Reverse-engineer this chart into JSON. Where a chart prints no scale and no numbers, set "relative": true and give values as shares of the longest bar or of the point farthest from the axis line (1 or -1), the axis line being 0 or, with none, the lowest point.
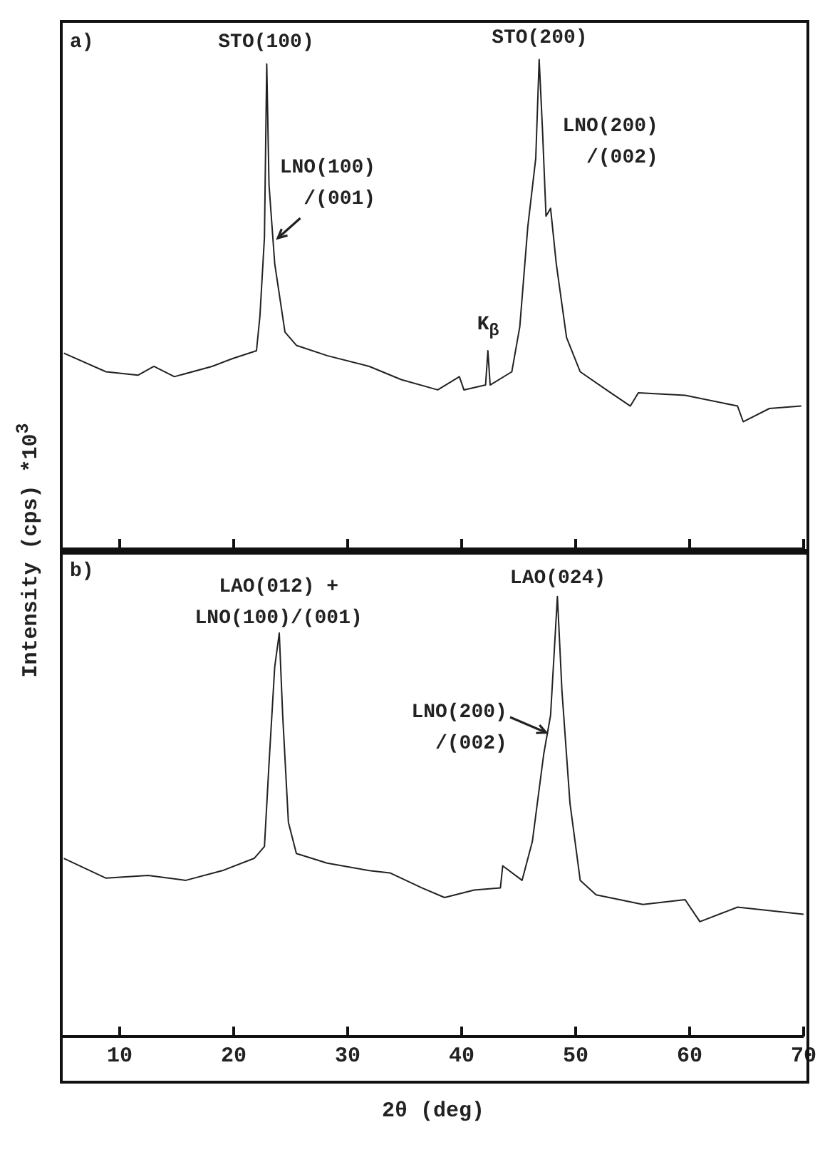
{
  "chart_data": [
    {
      "type": "line",
      "relative": true,
      "ylabel": "Intensity (cps) *10$^{3}$",
      "xlim": [
        5,
        70
      ],
      "xticks": [
        {
          "value": 10,
          "label": null
        },
        {
          "value": 20,
          "label": null
        },
        {
          "value": 30,
          "label": null
        },
        {
          "value": 40,
          "label": null
        },
        {
          "value": 50,
          "label": null
        },
        {
          "value": 60,
          "label": null
        },
        {
          "value": 70,
          "label": null
        }
      ],
      "tick_labels": false,
      "marker": "none",
      "series": [
        {
          "color": "#222222",
          "x": [
            5.1,
            8.8,
            11.6,
            13.0,
            14.8,
            18.1,
            19.9,
            22.0,
            22.3,
            22.7,
            22.9,
            23.1,
            23.6,
            24.5,
            25.5,
            28.2,
            31.9,
            34.7,
            37.9,
            39.8,
            40.2,
            42.1,
            42.3,
            42.5,
            44.4,
            45.1,
            45.8,
            46.5,
            46.8,
            47.1,
            47.4,
            47.8,
            48.3,
            49.2,
            50.4,
            52.7,
            54.8,
            55.5,
            59.6,
            64.2,
            64.7,
            67.0,
            69.8
          ],
          "values": [
            0.4,
            0.362,
            0.355,
            0.373,
            0.352,
            0.373,
            0.389,
            0.405,
            0.475,
            0.637,
            0.991,
            0.744,
            0.583,
            0.443,
            0.416,
            0.395,
            0.373,
            0.346,
            0.325,
            0.352,
            0.325,
            0.335,
            0.405,
            0.335,
            0.362,
            0.454,
            0.658,
            0.798,
            1.0,
            0.852,
            0.68,
            0.696,
            0.583,
            0.432,
            0.362,
            0.325,
            0.292,
            0.319,
            0.314,
            0.292,
            0.26,
            0.287,
            0.292
          ]
        }
      ],
      "annotations": [
        "a)",
        {
          "text": "STO(100)",
          "x": 22.9,
          "y": 0.991
        },
        {
          "text": "STO(200)",
          "x": 46.8,
          "y": 1.0
        },
        {
          "text": "LNO(100)\n/(001)",
          "x": 23.6,
          "y": 0.63
        },
        {
          "text": "LNO(200)\n/(002)",
          "x": 47.8,
          "y": 0.696
        },
        {
          "text": "K$_{β}$",
          "x": 42.3,
          "y": 0.405
        }
      ]
    },
    {
      "type": "line",
      "relative": true,
      "xlabel": "2θ (deg)",
      "xlim": [
        5,
        70
      ],
      "xticks": [
        10,
        20,
        30,
        40,
        50,
        60,
        70
      ],
      "tick_labels": "x",
      "marker": "none",
      "series": [
        {
          "color": "#222222",
          "x": [
            5.1,
            8.8,
            12.5,
            15.8,
            19.0,
            21.8,
            22.7,
            23.1,
            23.6,
            24.0,
            24.3,
            24.8,
            25.5,
            28.2,
            31.9,
            33.7,
            36.5,
            38.5,
            41.1,
            43.4,
            43.6,
            45.3,
            46.2,
            47.2,
            47.8,
            48.4,
            48.8,
            49.5,
            50.4,
            51.8,
            55.9,
            59.6,
            60.9,
            64.2,
            70.0
          ],
          "values": [
            0.405,
            0.36,
            0.366,
            0.355,
            0.377,
            0.405,
            0.432,
            0.62,
            0.84,
            0.917,
            0.73,
            0.487,
            0.416,
            0.394,
            0.377,
            0.372,
            0.338,
            0.316,
            0.333,
            0.338,
            0.388,
            0.355,
            0.443,
            0.642,
            0.73,
            1.0,
            0.785,
            0.531,
            0.355,
            0.322,
            0.3,
            0.311,
            0.261,
            0.294,
            0.278
          ]
        }
      ],
      "annotations": [
        "b)",
        {
          "text": "LAO(012) +\nLNO(100)/(001)",
          "x": 24.0,
          "y": 0.917
        },
        {
          "text": "LAO(024)",
          "x": 48.4,
          "y": 1.0
        },
        {
          "text": "LNO(200)\n/(002)",
          "x": 47.7,
          "y": 0.72
        }
      ]
    }
  ]
}
